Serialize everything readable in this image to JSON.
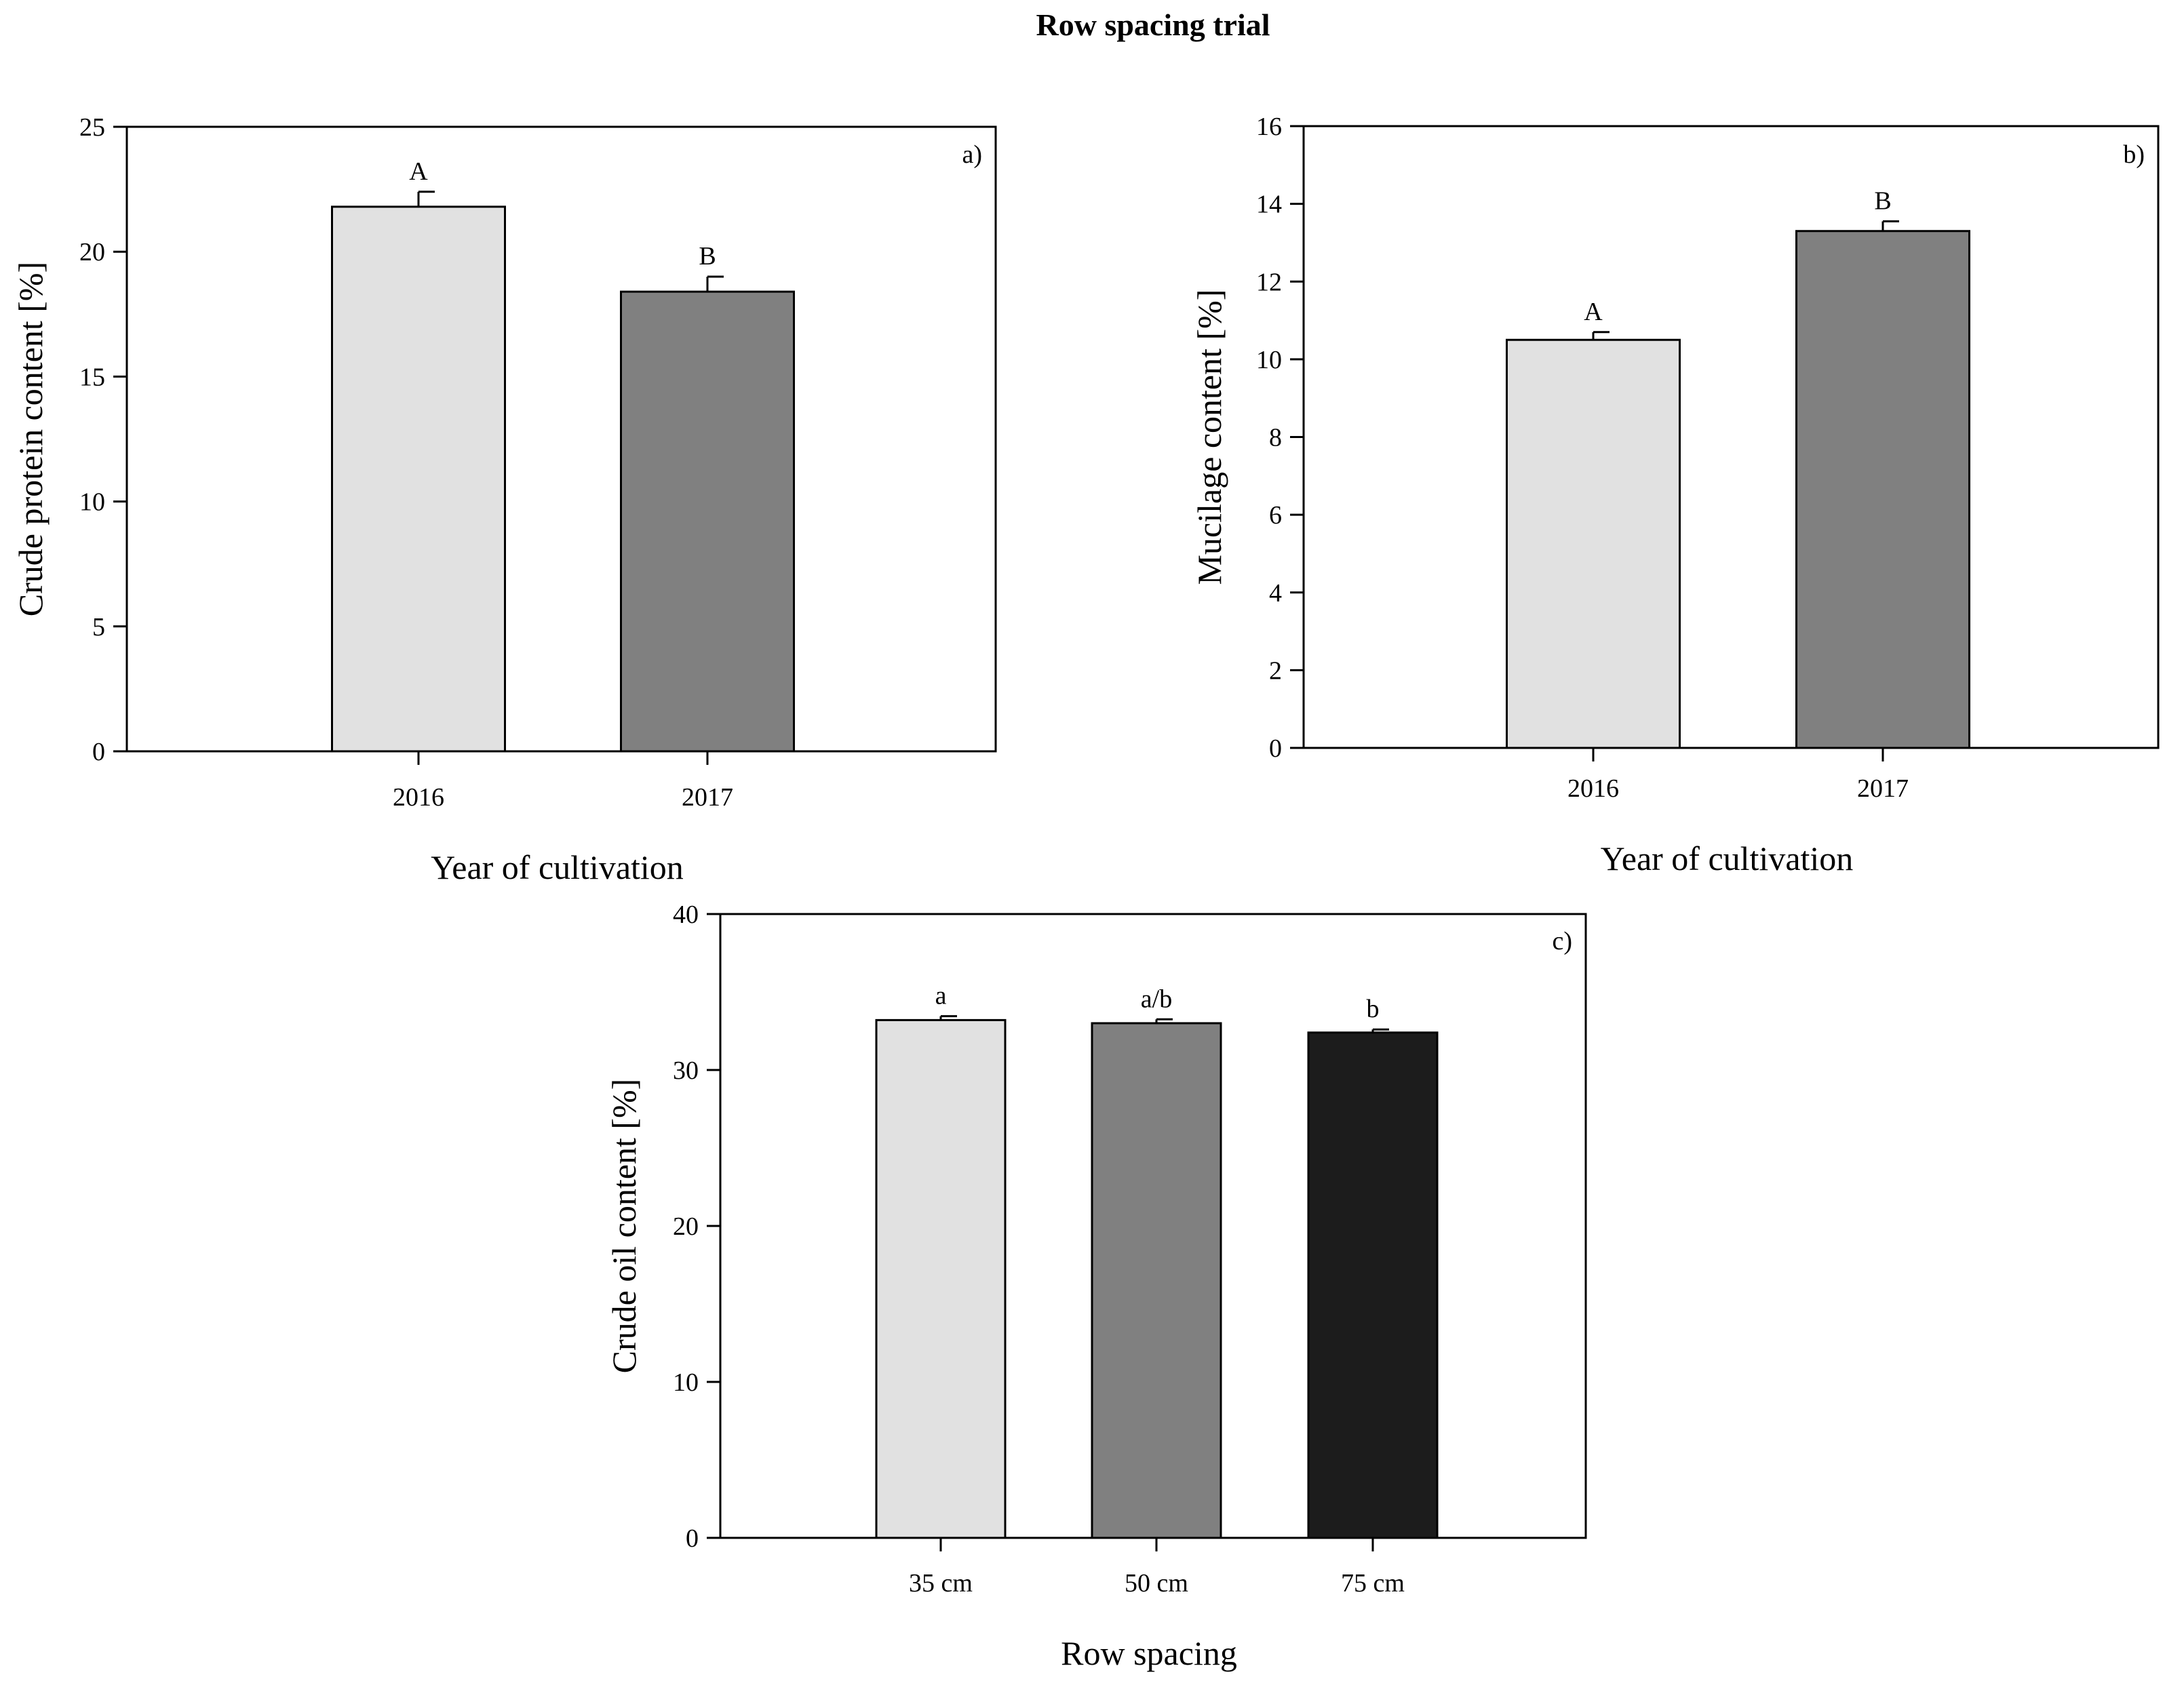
{
  "figure_title": "Row spacing trial",
  "chart_data": [
    {
      "type": "bar",
      "panel_label": "a)",
      "categories": [
        "2016",
        "2017"
      ],
      "values": [
        21.8,
        18.4
      ],
      "errors": [
        0.6,
        0.6
      ],
      "significance": [
        "A",
        "B"
      ],
      "colors": [
        "#e1e1e1",
        "#808080"
      ],
      "xlabel": "Year of cultivation",
      "ylabel": "Crude protein content [%]",
      "ylim": [
        0,
        25
      ],
      "yticks": [
        0,
        5,
        10,
        15,
        20,
        25
      ]
    },
    {
      "type": "bar",
      "panel_label": "b)",
      "categories": [
        "2016",
        "2017"
      ],
      "values": [
        10.5,
        13.3
      ],
      "errors": [
        0.2,
        0.25
      ],
      "significance": [
        "A",
        "B"
      ],
      "colors": [
        "#e1e1e1",
        "#808080"
      ],
      "xlabel": "Year of cultivation",
      "ylabel": "Mucilage content [%]",
      "ylim": [
        0,
        16
      ],
      "yticks": [
        0,
        2,
        4,
        6,
        8,
        10,
        12,
        14,
        16
      ]
    },
    {
      "type": "bar",
      "panel_label": "c)",
      "categories": [
        "35 cm",
        "50 cm",
        "75 cm"
      ],
      "values": [
        33.2,
        33.0,
        32.4
      ],
      "errors": [
        0.25,
        0.25,
        0.2
      ],
      "significance": [
        "a",
        "a/b",
        "b"
      ],
      "colors": [
        "#e1e1e1",
        "#808080",
        "#1c1c1c"
      ],
      "xlabel": "Row spacing",
      "ylabel": "Crude oil content [%]",
      "ylim": [
        0,
        40
      ],
      "yticks": [
        0,
        10,
        20,
        30,
        40
      ]
    }
  ]
}
